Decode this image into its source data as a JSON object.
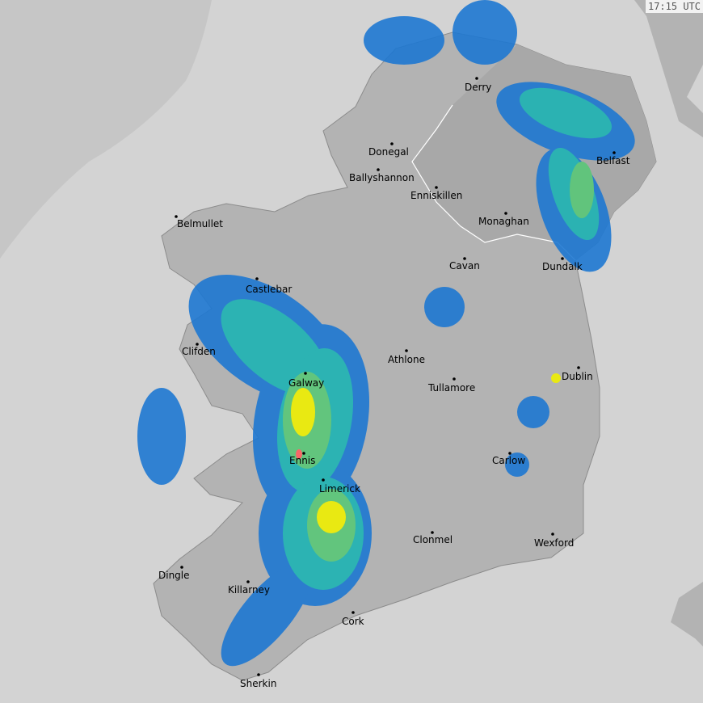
{
  "timestamp": "17:15 UTC",
  "colors": {
    "sea": "#d3d3d3",
    "out_of_range": "#c6c6c6",
    "land": "#b3b3b3",
    "land_north": "#a6a6a6",
    "border": "#ffffff",
    "rain_light": "#1e78d2",
    "rain_moderate": "#1eb4b4",
    "rain_medium": "#5ac878",
    "rain_heavy": "#f0f000",
    "rain_very_heavy": "#ff6060"
  },
  "cities": [
    {
      "name": "Derry"
    },
    {
      "name": "Donegal"
    },
    {
      "name": "Ballyshannon"
    },
    {
      "name": "Enniskillen"
    },
    {
      "name": "Monaghan"
    },
    {
      "name": "Belfast"
    },
    {
      "name": "Belmullet"
    },
    {
      "name": "Castlebar"
    },
    {
      "name": "Cavan"
    },
    {
      "name": "Dundalk"
    },
    {
      "name": "Clifden"
    },
    {
      "name": "Athlone"
    },
    {
      "name": "Galway"
    },
    {
      "name": "Tullamore"
    },
    {
      "name": "Dublin"
    },
    {
      "name": "Ennis"
    },
    {
      "name": "Carlow"
    },
    {
      "name": "Limerick"
    },
    {
      "name": "Clonmel"
    },
    {
      "name": "Wexford"
    },
    {
      "name": "Dingle"
    },
    {
      "name": "Killarney"
    },
    {
      "name": "Cork"
    },
    {
      "name": "Sherkin"
    }
  ]
}
